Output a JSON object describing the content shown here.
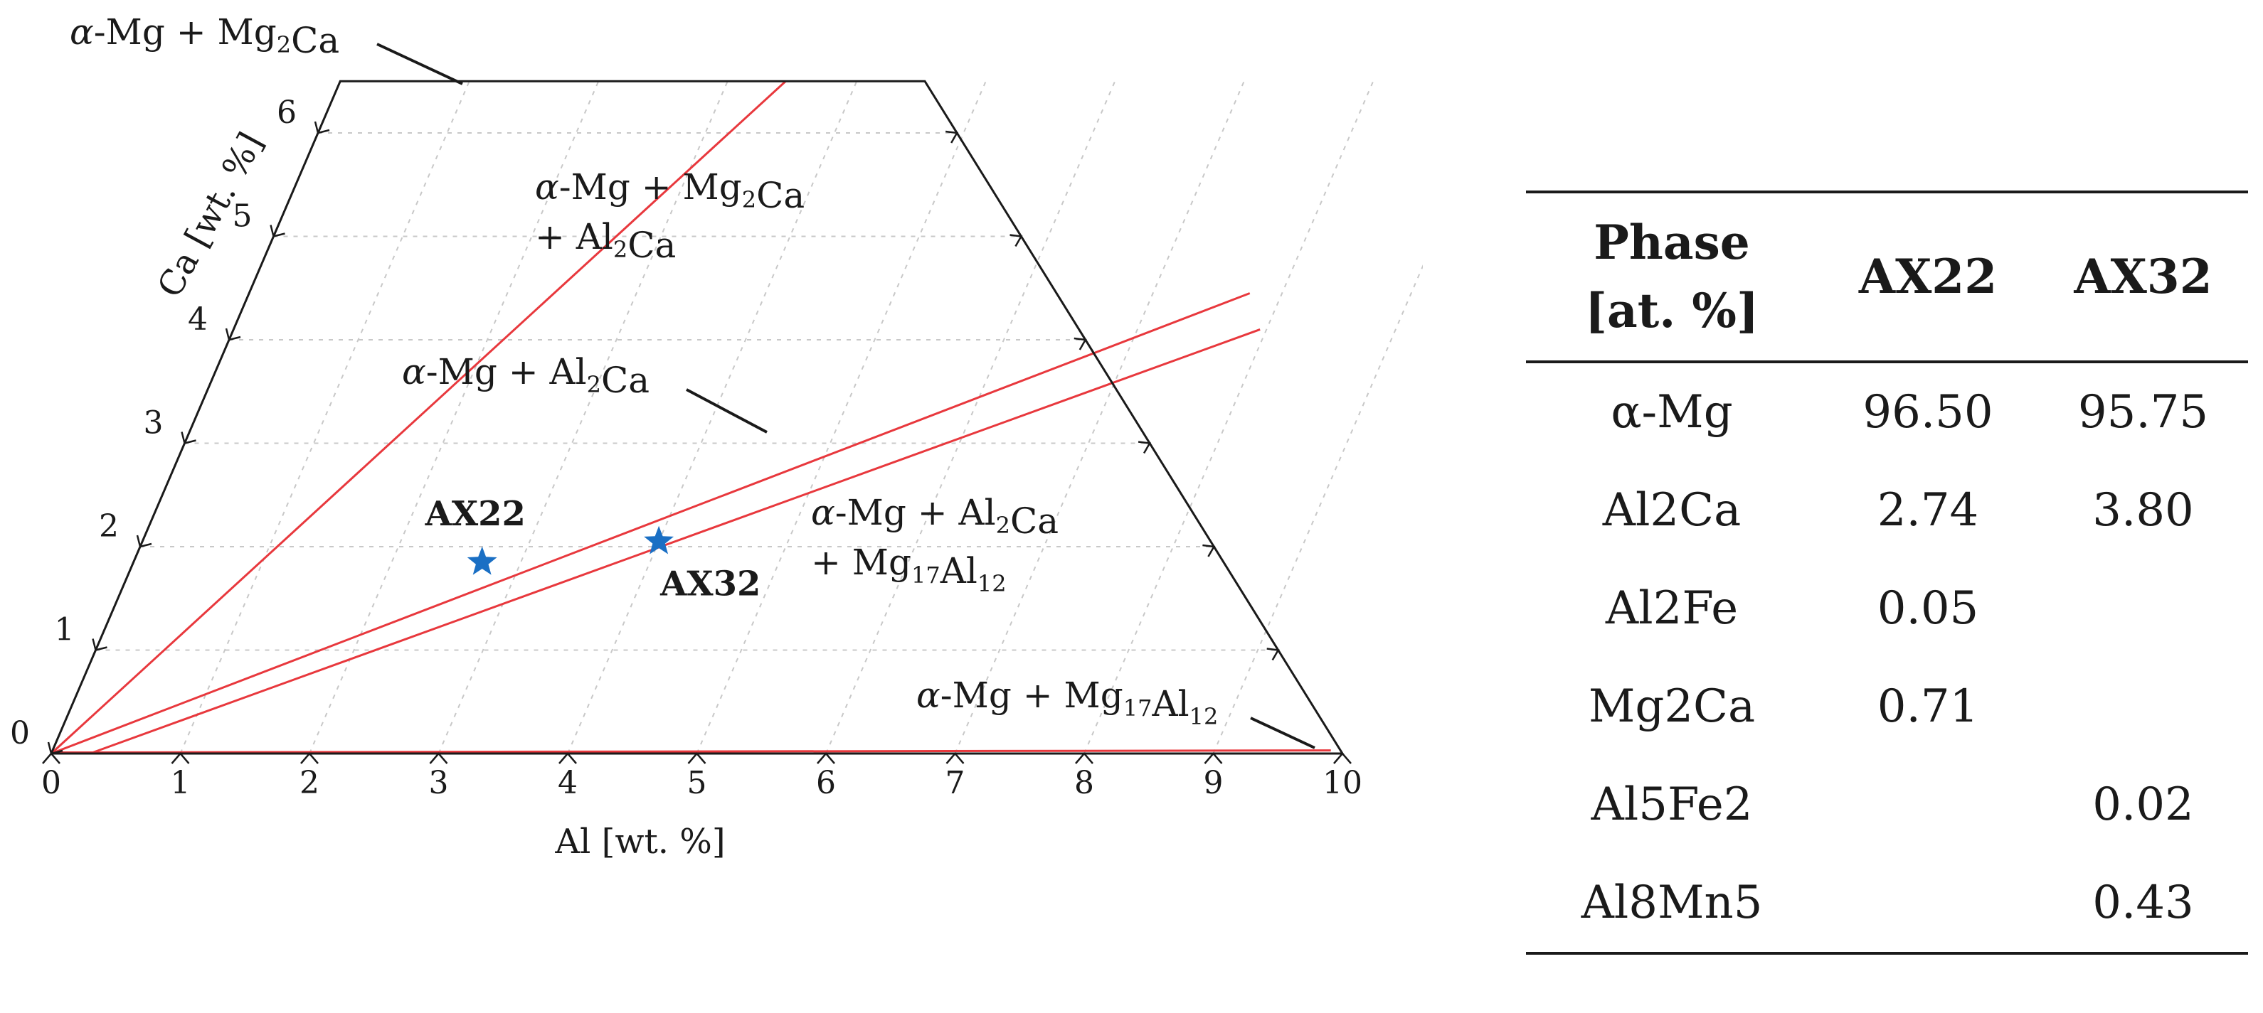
{
  "chart_data": {
    "type": "diagram",
    "x_axis": {
      "label": "Al [wt. %]",
      "range": [
        0,
        10
      ],
      "ticks": [
        "0",
        "1",
        "2",
        "3",
        "4",
        "5",
        "6",
        "7",
        "8",
        "9",
        "10"
      ]
    },
    "y_axis": {
      "label": "Ca [wt. %]",
      "range": [
        0,
        6.5
      ],
      "ticks": [
        "0",
        "1",
        "2",
        "3",
        "4",
        "5",
        "6"
      ]
    },
    "regions": [
      {
        "parts": [
          {
            "t": "α"
          },
          {
            "t": "-Mg + Mg"
          },
          {
            "t": "2",
            "sub": true
          },
          {
            "t": "Ca"
          }
        ]
      },
      {
        "parts": [
          {
            "t": "α"
          },
          {
            "t": "-Mg + Mg"
          },
          {
            "t": "2",
            "sub": true
          },
          {
            "t": "Ca"
          }
        ],
        "parts2": [
          {
            "t": "+ Al"
          },
          {
            "t": "2",
            "sub": true
          },
          {
            "t": "Ca"
          }
        ]
      },
      {
        "parts": [
          {
            "t": "α"
          },
          {
            "t": "-Mg + Al"
          },
          {
            "t": "2",
            "sub": true
          },
          {
            "t": "Ca"
          }
        ]
      },
      {
        "parts": [
          {
            "t": "α"
          },
          {
            "t": "-Mg + Al"
          },
          {
            "t": "2",
            "sub": true
          },
          {
            "t": "Ca"
          }
        ],
        "parts2": [
          {
            "t": "+ Mg"
          },
          {
            "t": "17",
            "sub": true
          },
          {
            "t": "Al"
          },
          {
            "t": "12",
            "sub": true
          }
        ]
      },
      {
        "parts": [
          {
            "t": "α"
          },
          {
            "t": "-Mg + Mg"
          },
          {
            "t": "17",
            "sub": true
          },
          {
            "t": "Al"
          },
          {
            "t": "12",
            "sub": true
          }
        ]
      }
    ],
    "alloys": [
      {
        "name": "AX22",
        "al": 2.7,
        "ca": 1.85
      },
      {
        "name": "AX32",
        "al": 4.0,
        "ca": 2.05
      }
    ],
    "boundaries": [
      {
        "phase_edge": "Mg2Ca",
        "points": [
          [
            0,
            0
          ],
          [
            3.45,
            6.5
          ]
        ]
      },
      {
        "phase_edge": "Al2Ca upper",
        "points": [
          [
            0,
            0
          ],
          [
            7.75,
            4.45
          ]
        ]
      },
      {
        "phase_edge": "Al2Ca lower",
        "points": [
          [
            0.3,
            0
          ],
          [
            7.95,
            4.1
          ]
        ]
      },
      {
        "phase_edge": "Mg17Al12",
        "points": [
          [
            0,
            0.01
          ],
          [
            9.9,
            0.03
          ]
        ]
      }
    ],
    "colors": {
      "boundary": "#e8383d",
      "alloy_marker": "#1a6fc4",
      "frame": "#1a1a1a",
      "grid": "#c8c8c8"
    }
  },
  "table": {
    "headers": {
      "phase_line1": "Phase",
      "phase_line2": "[at. %]",
      "ax22": "AX22",
      "ax32": "AX32"
    },
    "rows": [
      {
        "phase": "α-Mg",
        "ax22": "96.50",
        "ax32": "95.75"
      },
      {
        "phase": "Al2Ca",
        "ax22": "2.74",
        "ax32": "3.80"
      },
      {
        "phase": "Al2Fe",
        "ax22": "0.05",
        "ax32": ""
      },
      {
        "phase": "Mg2Ca",
        "ax22": "0.71",
        "ax32": ""
      },
      {
        "phase": "Al5Fe2",
        "ax22": "",
        "ax32": "0.02"
      },
      {
        "phase": "Al8Mn5",
        "ax22": "",
        "ax32": "0.43"
      }
    ]
  }
}
